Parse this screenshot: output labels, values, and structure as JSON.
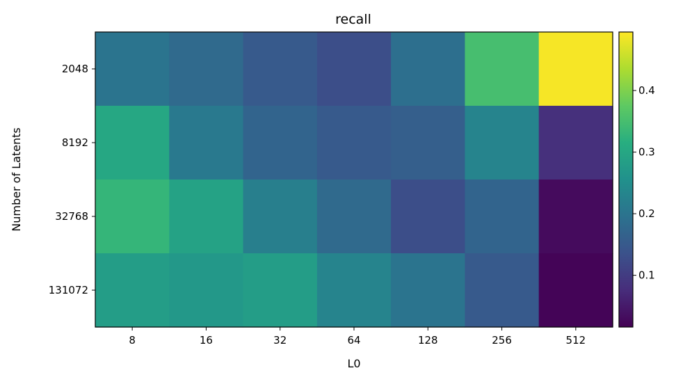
{
  "chart_data": {
    "type": "heatmap",
    "title": "recall",
    "xlabel": "L0",
    "ylabel": "Number of Latents",
    "x_categories": [
      "8",
      "16",
      "32",
      "64",
      "128",
      "256",
      "512"
    ],
    "y_categories": [
      "2048",
      "8192",
      "32768",
      "131072"
    ],
    "values": [
      [
        0.2,
        0.18,
        0.15,
        0.13,
        0.19,
        0.35,
        0.49
      ],
      [
        0.3,
        0.21,
        0.17,
        0.15,
        0.16,
        0.23,
        0.08
      ],
      [
        0.33,
        0.29,
        0.22,
        0.18,
        0.13,
        0.17,
        0.03
      ],
      [
        0.28,
        0.27,
        0.28,
        0.23,
        0.2,
        0.15,
        0.02
      ]
    ],
    "colorbar": {
      "range": [
        0.016,
        0.495
      ],
      "ticks": [
        0.1,
        0.2,
        0.3,
        0.4
      ],
      "tick_labels": [
        "0.1",
        "0.2",
        "0.3",
        "0.4"
      ],
      "colormap": "viridis"
    }
  }
}
